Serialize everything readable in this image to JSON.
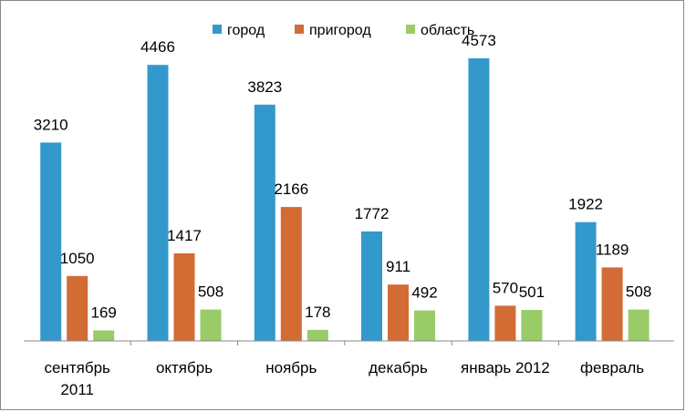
{
  "chart_data": {
    "type": "bar",
    "categories": [
      "сентябрь 2011",
      "октябрь",
      "ноябрь",
      "декабрь",
      "январь 2012",
      "февраль"
    ],
    "series": [
      {
        "name": "город",
        "color": "#3399CC",
        "values": [
          3210,
          4466,
          3823,
          1772,
          4573,
          1922
        ]
      },
      {
        "name": "пригород",
        "color": "#D36B35",
        "values": [
          1050,
          1417,
          2166,
          911,
          570,
          1189
        ]
      },
      {
        "name": "область",
        "color": "#99CC66",
        "values": [
          169,
          508,
          178,
          492,
          501,
          508
        ]
      }
    ],
    "title": "",
    "xlabel": "",
    "ylabel": "",
    "ylim": [
      0,
      5000
    ],
    "grid": false,
    "legend_position": "top",
    "data_labels": true
  }
}
